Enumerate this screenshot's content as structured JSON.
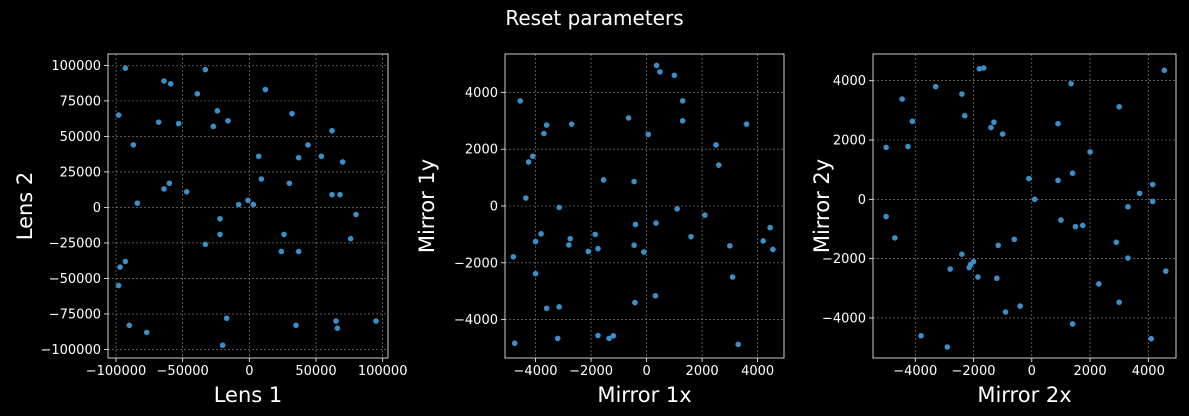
{
  "title": "Reset parameters",
  "colors": {
    "background": "#000000",
    "axes": "#ffffff",
    "grid": "#8c8c8c",
    "point": "#3a8fc8"
  },
  "chart_data": [
    {
      "type": "scatter",
      "xlabel": "Lens 1",
      "ylabel": "Lens 2",
      "xlim": [
        -106000,
        104000
      ],
      "ylim": [
        -106000,
        108000
      ],
      "xticks": [
        -100000,
        -50000,
        0,
        50000,
        100000
      ],
      "xtick_labels": [
        "−100000",
        "−50000",
        "0",
        "50000",
        "100000"
      ],
      "yticks": [
        -100000,
        -75000,
        -50000,
        -25000,
        0,
        25000,
        50000,
        75000,
        100000
      ],
      "ytick_labels": [
        "−100000",
        "−75000",
        "−50000",
        "−25000",
        "0",
        "25000",
        "50000",
        "75000",
        "100000"
      ],
      "grid": true,
      "points": [
        [
          -93000,
          98000
        ],
        [
          -33000,
          97000
        ],
        [
          -64000,
          89000
        ],
        [
          -59000,
          87000
        ],
        [
          -39000,
          80000
        ],
        [
          12000,
          83000
        ],
        [
          -24000,
          68000
        ],
        [
          -98000,
          65000
        ],
        [
          32000,
          66000
        ],
        [
          -68000,
          60000
        ],
        [
          -53000,
          59000
        ],
        [
          -27000,
          57000
        ],
        [
          -16000,
          61000
        ],
        [
          62000,
          54000
        ],
        [
          -87000,
          44000
        ],
        [
          44000,
          44000
        ],
        [
          7000,
          36000
        ],
        [
          37000,
          35000
        ],
        [
          54000,
          36000
        ],
        [
          70000,
          32000
        ],
        [
          -60000,
          17000
        ],
        [
          -64000,
          13000
        ],
        [
          -47000,
          11000
        ],
        [
          9000,
          20000
        ],
        [
          30000,
          17000
        ],
        [
          62000,
          9000
        ],
        [
          68000,
          9000
        ],
        [
          -84000,
          3000
        ],
        [
          -8000,
          2000
        ],
        [
          -1000,
          5000
        ],
        [
          3000,
          2000
        ],
        [
          80000,
          -5000
        ],
        [
          -22000,
          -8000
        ],
        [
          -22000,
          -19000
        ],
        [
          26000,
          -19000
        ],
        [
          -33000,
          -26000
        ],
        [
          76000,
          -22000
        ],
        [
          24000,
          -31000
        ],
        [
          37000,
          -31000
        ],
        [
          -93000,
          -38000
        ],
        [
          -97000,
          -42000
        ],
        [
          -98000,
          -55000
        ],
        [
          -17000,
          -78000
        ],
        [
          35000,
          -83000
        ],
        [
          -90000,
          -83000
        ],
        [
          65000,
          -80000
        ],
        [
          66000,
          -85000
        ],
        [
          95000,
          -80000
        ],
        [
          -77000,
          -88000
        ],
        [
          -20000,
          -97000
        ]
      ]
    },
    {
      "type": "scatter",
      "xlabel": "Mirror 1x",
      "ylabel": "Mirror 1y",
      "xlim": [
        -5100,
        4950
      ],
      "ylim": [
        -5350,
        5350
      ],
      "xticks": [
        -4000,
        -2000,
        0,
        2000,
        4000
      ],
      "xtick_labels": [
        "−4000",
        "−2000",
        "0",
        "2000",
        "4000"
      ],
      "yticks": [
        -4000,
        -2000,
        0,
        2000,
        4000
      ],
      "ytick_labels": [
        "−4000",
        "−2000",
        "0",
        "2000",
        "4000"
      ],
      "grid": true,
      "points": [
        [
          360,
          4950
        ],
        [
          480,
          4720
        ],
        [
          1000,
          4600
        ],
        [
          -4550,
          3700
        ],
        [
          1300,
          3700
        ],
        [
          -650,
          3100
        ],
        [
          -3600,
          2850
        ],
        [
          -2700,
          2880
        ],
        [
          1300,
          3000
        ],
        [
          3600,
          2880
        ],
        [
          -3700,
          2550
        ],
        [
          60,
          2520
        ],
        [
          2500,
          2150
        ],
        [
          -4100,
          1750
        ],
        [
          -4250,
          1550
        ],
        [
          2600,
          1440
        ],
        [
          -1550,
          920
        ],
        [
          -450,
          860
        ],
        [
          -4350,
          280
        ],
        [
          -3150,
          -50
        ],
        [
          1100,
          -100
        ],
        [
          2100,
          -320
        ],
        [
          340,
          -600
        ],
        [
          -400,
          -650
        ],
        [
          -3800,
          -980
        ],
        [
          -1850,
          -1000
        ],
        [
          1600,
          -1080
        ],
        [
          -2750,
          -1150
        ],
        [
          4450,
          -760
        ],
        [
          -4000,
          -1250
        ],
        [
          -2800,
          -1370
        ],
        [
          -450,
          -1380
        ],
        [
          -1750,
          -1500
        ],
        [
          -2100,
          -1600
        ],
        [
          3000,
          -1400
        ],
        [
          4200,
          -1230
        ],
        [
          -100,
          -1620
        ],
        [
          4550,
          -1530
        ],
        [
          -4800,
          -1790
        ],
        [
          -4000,
          -2380
        ],
        [
          3100,
          -2500
        ],
        [
          -420,
          -3400
        ],
        [
          320,
          -3160
        ],
        [
          -3150,
          -3550
        ],
        [
          -3600,
          -3600
        ],
        [
          -1750,
          -4560
        ],
        [
          -1350,
          -4660
        ],
        [
          -1200,
          -4570
        ],
        [
          -3200,
          -4660
        ],
        [
          -4750,
          -4830
        ],
        [
          3300,
          -4870
        ]
      ]
    },
    {
      "type": "scatter",
      "xlabel": "Mirror 2x",
      "ylabel": "Mirror 2y",
      "xlim": [
        -5450,
        4950
      ],
      "ylim": [
        -5350,
        4900
      ],
      "xticks": [
        -4000,
        -2000,
        0,
        2000,
        4000
      ],
      "xtick_labels": [
        "−4000",
        "−2000",
        "0",
        "2000",
        "4000"
      ],
      "yticks": [
        -4000,
        -2000,
        0,
        2000,
        4000
      ],
      "ytick_labels": [
        "−4000",
        "−2000",
        "0",
        "2000",
        "4000"
      ],
      "grid": true,
      "points": [
        [
          -1800,
          4400
        ],
        [
          -1650,
          4430
        ],
        [
          4550,
          4350
        ],
        [
          1350,
          3900
        ],
        [
          -3300,
          3800
        ],
        [
          -2400,
          3550
        ],
        [
          -4450,
          3380
        ],
        [
          3000,
          3120
        ],
        [
          -2300,
          2820
        ],
        [
          -4100,
          2630
        ],
        [
          -1300,
          2600
        ],
        [
          900,
          2550
        ],
        [
          -1400,
          2420
        ],
        [
          -1000,
          2200
        ],
        [
          -5000,
          1750
        ],
        [
          -4250,
          1780
        ],
        [
          2000,
          1600
        ],
        [
          -100,
          700
        ],
        [
          900,
          640
        ],
        [
          1400,
          880
        ],
        [
          4150,
          500
        ],
        [
          3700,
          200
        ],
        [
          100,
          0
        ],
        [
          4150,
          -70
        ],
        [
          3300,
          -250
        ],
        [
          -5000,
          -580
        ],
        [
          1000,
          -700
        ],
        [
          1500,
          -920
        ],
        [
          1750,
          -880
        ],
        [
          -4700,
          -1300
        ],
        [
          -600,
          -1350
        ],
        [
          -2000,
          -2100
        ],
        [
          2900,
          -1450
        ],
        [
          -1150,
          -1550
        ],
        [
          -2400,
          -1850
        ],
        [
          -2150,
          -2300
        ],
        [
          -1850,
          -2620
        ],
        [
          -2100,
          -2200
        ],
        [
          -1200,
          -2660
        ],
        [
          3300,
          -1980
        ],
        [
          -2800,
          -2350
        ],
        [
          2300,
          -2850
        ],
        [
          4600,
          -2420
        ],
        [
          3000,
          -3470
        ],
        [
          -900,
          -3800
        ],
        [
          -400,
          -3600
        ],
        [
          1400,
          -4200
        ],
        [
          -3800,
          -4600
        ],
        [
          -2900,
          -4980
        ],
        [
          4100,
          -4700
        ]
      ]
    }
  ]
}
